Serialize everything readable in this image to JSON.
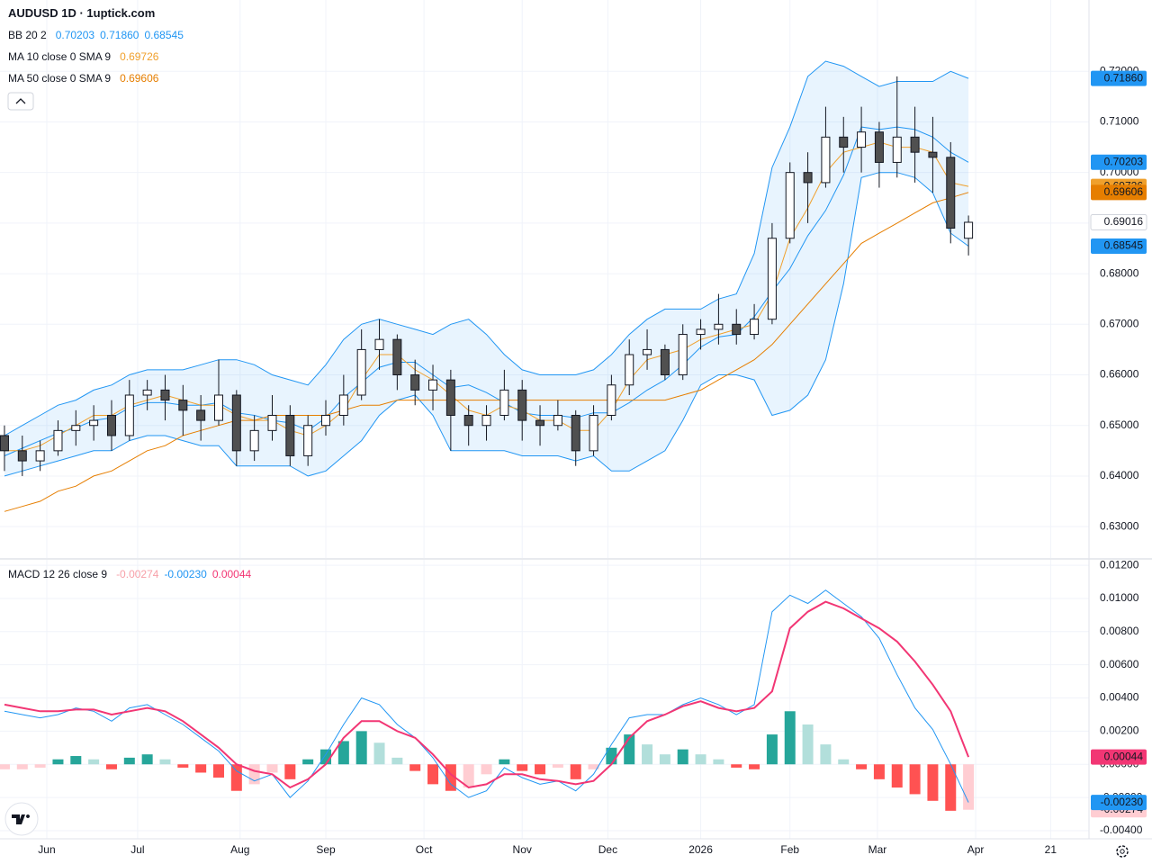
{
  "chart_data": [
    {
      "type": "candlestick",
      "title": "AUDUSD 1D · 1uptick.com",
      "xlim": [
        -0.25,
        60.75
      ],
      "x_ticks": [
        {
          "value": 2.37,
          "label": "Jun"
        },
        {
          "value": 7.46,
          "label": "Jul"
        },
        {
          "value": 13.2,
          "label": "Aug"
        },
        {
          "value": 18.0,
          "label": "Sep"
        },
        {
          "value": 23.5,
          "label": "Oct"
        },
        {
          "value": 29.0,
          "label": "Nov"
        },
        {
          "value": 33.8,
          "label": "Dec"
        },
        {
          "value": 39.0,
          "label": "2026"
        },
        {
          "value": 44.0,
          "label": "Feb"
        },
        {
          "value": 48.9,
          "label": "Mar"
        },
        {
          "value": 54.4,
          "label": "Apr"
        },
        {
          "value": 58.6,
          "label": "21"
        }
      ],
      "ylim": [
        0.6238,
        0.7341
      ],
      "yticks": [
        {
          "value": 0.63,
          "label": "0.63000"
        },
        {
          "value": 0.64,
          "label": "0.64000"
        },
        {
          "value": 0.65,
          "label": "0.65000"
        },
        {
          "value": 0.66,
          "label": "0.66000"
        },
        {
          "value": 0.67,
          "label": "0.67000"
        },
        {
          "value": 0.68,
          "label": "0.68000"
        },
        {
          "value": 0.69,
          "label": "0.69000"
        },
        {
          "value": 0.7,
          "label": "0.70000"
        },
        {
          "value": 0.71,
          "label": "0.71000"
        },
        {
          "value": 0.72,
          "label": "0.72000"
        }
      ],
      "grid": true,
      "up_color": "#ffffff",
      "down_color": "#505050",
      "wick_color": "#131722",
      "open": [
        0.648,
        0.645,
        0.643,
        0.645,
        0.649,
        0.65,
        0.652,
        0.648,
        0.656,
        0.657,
        0.655,
        0.653,
        0.651,
        0.656,
        0.645,
        0.649,
        0.652,
        0.644,
        0.65,
        0.652,
        0.656,
        0.665,
        0.667,
        0.66,
        0.657,
        0.659,
        0.652,
        0.65,
        0.652,
        0.657,
        0.651,
        0.65,
        0.652,
        0.645,
        0.652,
        0.658,
        0.664,
        0.665,
        0.66,
        0.668,
        0.669,
        0.67,
        0.668,
        0.671,
        0.687,
        0.7,
        0.698,
        0.707,
        0.705,
        0.708,
        0.702,
        0.707,
        0.704,
        0.703,
        0.687
      ],
      "high": [
        0.65,
        0.648,
        0.647,
        0.651,
        0.653,
        0.654,
        0.655,
        0.659,
        0.659,
        0.66,
        0.658,
        0.656,
        0.663,
        0.657,
        0.652,
        0.656,
        0.654,
        0.652,
        0.655,
        0.66,
        0.669,
        0.671,
        0.668,
        0.663,
        0.662,
        0.661,
        0.654,
        0.654,
        0.661,
        0.659,
        0.654,
        0.655,
        0.653,
        0.654,
        0.66,
        0.667,
        0.669,
        0.666,
        0.67,
        0.671,
        0.676,
        0.673,
        0.674,
        0.69,
        0.702,
        0.704,
        0.713,
        0.711,
        0.713,
        0.71,
        0.719,
        0.713,
        0.711,
        0.706,
        0.6915
      ],
      "low": [
        0.641,
        0.64,
        0.641,
        0.644,
        0.646,
        0.647,
        0.645,
        0.647,
        0.653,
        0.651,
        0.648,
        0.647,
        0.65,
        0.642,
        0.643,
        0.647,
        0.642,
        0.642,
        0.648,
        0.65,
        0.655,
        0.661,
        0.657,
        0.654,
        0.653,
        0.645,
        0.646,
        0.647,
        0.651,
        0.647,
        0.646,
        0.649,
        0.642,
        0.644,
        0.651,
        0.656,
        0.661,
        0.659,
        0.659,
        0.665,
        0.666,
        0.666,
        0.667,
        0.67,
        0.686,
        0.69,
        0.697,
        0.7,
        0.7,
        0.697,
        0.699,
        0.698,
        0.696,
        0.686,
        0.6836
      ],
      "close": [
        0.645,
        0.643,
        0.645,
        0.649,
        0.65,
        0.651,
        0.648,
        0.656,
        0.657,
        0.655,
        0.653,
        0.651,
        0.656,
        0.645,
        0.649,
        0.652,
        0.644,
        0.65,
        0.652,
        0.656,
        0.665,
        0.667,
        0.66,
        0.657,
        0.659,
        0.652,
        0.65,
        0.652,
        0.657,
        0.651,
        0.65,
        0.652,
        0.645,
        0.652,
        0.658,
        0.664,
        0.665,
        0.66,
        0.668,
        0.669,
        0.67,
        0.668,
        0.671,
        0.687,
        0.7,
        0.698,
        0.707,
        0.705,
        0.708,
        0.702,
        0.707,
        0.704,
        0.703,
        0.689,
        0.69016
      ],
      "bb": {
        "color": "#2196f3",
        "fill": "rgba(33,150,243,0.1)",
        "upper": [
          0.648,
          0.65,
          0.652,
          0.654,
          0.655,
          0.657,
          0.658,
          0.66,
          0.661,
          0.661,
          0.661,
          0.662,
          0.663,
          0.663,
          0.662,
          0.66,
          0.659,
          0.658,
          0.662,
          0.667,
          0.67,
          0.671,
          0.67,
          0.669,
          0.668,
          0.67,
          0.671,
          0.668,
          0.664,
          0.661,
          0.66,
          0.66,
          0.66,
          0.661,
          0.664,
          0.668,
          0.671,
          0.673,
          0.673,
          0.673,
          0.675,
          0.676,
          0.684,
          0.701,
          0.709,
          0.719,
          0.722,
          0.721,
          0.719,
          0.717,
          0.718,
          0.718,
          0.718,
          0.72,
          0.7186
        ],
        "basis": [
          0.644,
          0.6455,
          0.647,
          0.6485,
          0.6495,
          0.651,
          0.6515,
          0.6535,
          0.6545,
          0.6545,
          0.654,
          0.654,
          0.6545,
          0.6525,
          0.652,
          0.651,
          0.6505,
          0.649,
          0.6515,
          0.6555,
          0.6585,
          0.6615,
          0.6625,
          0.6625,
          0.66,
          0.6575,
          0.658,
          0.6565,
          0.6545,
          0.6525,
          0.652,
          0.652,
          0.6515,
          0.6525,
          0.6525,
          0.6545,
          0.657,
          0.659,
          0.662,
          0.6655,
          0.6675,
          0.668,
          0.6715,
          0.6765,
          0.681,
          0.6875,
          0.6925,
          0.6995,
          0.709,
          0.7085,
          0.709,
          0.7085,
          0.707,
          0.704,
          0.70203
        ],
        "lower": [
          0.64,
          0.641,
          0.642,
          0.643,
          0.644,
          0.645,
          0.645,
          0.647,
          0.648,
          0.648,
          0.647,
          0.646,
          0.646,
          0.642,
          0.642,
          0.642,
          0.642,
          0.64,
          0.641,
          0.644,
          0.647,
          0.652,
          0.655,
          0.656,
          0.652,
          0.645,
          0.645,
          0.645,
          0.645,
          0.644,
          0.644,
          0.644,
          0.643,
          0.644,
          0.641,
          0.641,
          0.643,
          0.645,
          0.651,
          0.658,
          0.66,
          0.66,
          0.659,
          0.652,
          0.653,
          0.656,
          0.663,
          0.678,
          0.699,
          0.7,
          0.7,
          0.699,
          0.696,
          0.688,
          0.68545
        ]
      },
      "ma": [
        {
          "color": "#f0a02c",
          "values": [
            0.645,
            0.645,
            0.646,
            0.648,
            0.65,
            0.652,
            0.652,
            0.654,
            0.655,
            0.656,
            0.655,
            0.654,
            0.654,
            0.652,
            0.651,
            0.651,
            0.649,
            0.648,
            0.65,
            0.653,
            0.659,
            0.664,
            0.664,
            0.661,
            0.659,
            0.656,
            0.653,
            0.652,
            0.654,
            0.653,
            0.651,
            0.651,
            0.649,
            0.649,
            0.653,
            0.659,
            0.663,
            0.664,
            0.665,
            0.667,
            0.668,
            0.669,
            0.67,
            0.676,
            0.687,
            0.693,
            0.7,
            0.704,
            0.705,
            0.706,
            0.705,
            0.705,
            0.704,
            0.698,
            0.69726
          ]
        },
        {
          "color": "#e67e00",
          "values": [
            0.633,
            0.634,
            0.635,
            0.637,
            0.638,
            0.64,
            0.641,
            0.643,
            0.645,
            0.646,
            0.648,
            0.649,
            0.65,
            0.651,
            0.651,
            0.652,
            0.652,
            0.652,
            0.652,
            0.653,
            0.654,
            0.654,
            0.655,
            0.655,
            0.655,
            0.655,
            0.655,
            0.655,
            0.655,
            0.655,
            0.655,
            0.655,
            0.655,
            0.655,
            0.655,
            0.655,
            0.655,
            0.655,
            0.656,
            0.657,
            0.659,
            0.661,
            0.663,
            0.666,
            0.67,
            0.674,
            0.678,
            0.682,
            0.686,
            0.688,
            0.69,
            0.692,
            0.694,
            0.695,
            0.69606
          ]
        }
      ],
      "legend": [
        {
          "label": "BB 20 2",
          "values": [
            {
              "value": 0.70203,
              "label": "0.70203",
              "color": "#2196f3",
              "text_color": "#ffffff"
            },
            {
              "value": 0.7186,
              "label": "0.71860",
              "color": "#2196f3",
              "text_color": "#ffffff"
            },
            {
              "value": 0.68545,
              "label": "0.68545",
              "color": "#2196f3",
              "text_color": "#ffffff"
            }
          ]
        },
        {
          "label": "MA 10 close 0 SMA 9",
          "values": [
            {
              "value": 0.69726,
              "label": "0.69726",
              "color": "#f0a02c",
              "text_color": "#131722"
            }
          ]
        },
        {
          "label": "MA 50 close 0 SMA 9",
          "values": [
            {
              "value": 0.69606,
              "label": "0.69606",
              "color": "#e67e00",
              "text_color": "#131722"
            }
          ]
        }
      ]
    },
    {
      "type": "macd",
      "ylim": [
        -0.00449,
        0.01233
      ],
      "yticks": [
        {
          "value": 0.012,
          "label": "0.01200"
        },
        {
          "value": 0.01,
          "label": "0.01000"
        },
        {
          "value": 0.008,
          "label": "0.00800"
        },
        {
          "value": 0.006,
          "label": "0.00600"
        },
        {
          "value": 0.004,
          "label": "0.00400"
        },
        {
          "value": 0.002,
          "label": "0.00200"
        },
        {
          "value": 0,
          "label": "0.00000"
        },
        {
          "value": -0.002,
          "label": "-0.00200"
        },
        {
          "value": -0.004,
          "label": "-0.00400"
        }
      ],
      "macd_color": "#2196f3",
      "signal_color": "#f23674",
      "hist_colors": {
        "up_pos": "#26a69a",
        "down_pos": "#b2dfdb",
        "down_neg": "#ff5252",
        "up_neg": "#ffcdd2"
      },
      "macd": [
        0.0032,
        0.003,
        0.0028,
        0.003,
        0.0034,
        0.0032,
        0.0026,
        0.0034,
        0.0036,
        0.003,
        0.0024,
        0.0016,
        0.0008,
        -0.0004,
        -0.001,
        -0.0006,
        -0.002,
        -0.001,
        0.0006,
        0.0024,
        0.004,
        0.0036,
        0.0024,
        0.0016,
        0.0004,
        -0.0012,
        -0.002,
        -0.0016,
        -0.0002,
        -0.0008,
        -0.0012,
        -0.001,
        -0.0016,
        -0.0006,
        0.0012,
        0.0028,
        0.003,
        0.003,
        0.0036,
        0.004,
        0.0036,
        0.003,
        0.0036,
        0.0092,
        0.0102,
        0.0097,
        0.0105,
        0.0097,
        0.0089,
        0.0076,
        0.0054,
        0.0034,
        0.0021,
        0,
        -0.0023
      ],
      "signal": [
        0.0036,
        0.0034,
        0.0032,
        0.0032,
        0.0033,
        0.0033,
        0.003,
        0.0032,
        0.0034,
        0.0032,
        0.0026,
        0.0018,
        0.001,
        0,
        -0.0004,
        -0.0006,
        -0.0014,
        -0.0009,
        0,
        0.0016,
        0.0026,
        0.0026,
        0.002,
        0.0016,
        0.0006,
        -0.0006,
        -0.0014,
        -0.0012,
        -0.0006,
        -0.0006,
        -0.0009,
        -0.001,
        -0.0012,
        -0.001,
        0,
        0.0016,
        0.0026,
        0.003,
        0.0035,
        0.0038,
        0.0034,
        0.0032,
        0.0034,
        0.0044,
        0.0082,
        0.0092,
        0.0098,
        0.0094,
        0.0088,
        0.0082,
        0.0074,
        0.0062,
        0.0048,
        0.0032,
        0.00044
      ],
      "hist": [
        -0.0003,
        -0.0003,
        -0.0002,
        0.0003,
        0.0005,
        0.0003,
        -0.0003,
        0.0004,
        0.0006,
        0.0003,
        -0.0002,
        -0.0005,
        -0.0008,
        -0.0016,
        -0.0012,
        -0.0005,
        -0.0009,
        0.0003,
        0.0009,
        0.0014,
        0.002,
        0.0013,
        0.0004,
        -0.0004,
        -0.0012,
        -0.0016,
        -0.0014,
        -0.0006,
        0.0003,
        -0.0004,
        -0.0006,
        -0.0002,
        -0.0009,
        -0.0003,
        0.001,
        0.0018,
        0.0012,
        0.0006,
        0.0009,
        0.0006,
        0.0003,
        -0.0002,
        -0.0003,
        0.0018,
        0.0032,
        0.0024,
        0.0012,
        0.0003,
        -0.0003,
        -0.0009,
        -0.0014,
        -0.0018,
        -0.0022,
        -0.0028,
        -0.00274
      ],
      "legend": [
        {
          "label": "MACD 12 26 close 9",
          "values": [
            {
              "value": -0.00274,
              "label": "-0.00274",
              "color": "#f7a1a9",
              "tag_color": "#ffcdd2",
              "text_color": "#131722"
            },
            {
              "value": -0.0023,
              "label": "-0.00230",
              "color": "#2196f3",
              "tag_color": "#2196f3",
              "text_color": "#ffffff"
            },
            {
              "value": 0.00044,
              "label": "0.00044",
              "color": "#f23674",
              "tag_color": "#f23674",
              "text_color": "#ffffff"
            }
          ]
        }
      ]
    }
  ]
}
